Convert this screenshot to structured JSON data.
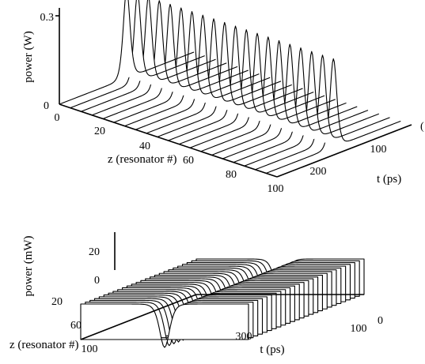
{
  "chart_data": [
    {
      "type": "area",
      "title": "",
      "zlabel": "power (W)",
      "xlabel": "z (resonator #)",
      "ylabel": "t (ps)",
      "z_ticks": [
        "0",
        "0.3"
      ],
      "x_ticks": [
        "0",
        "20",
        "40",
        "60",
        "80",
        "100"
      ],
      "t_ticks": [
        "100",
        "200"
      ],
      "t_tick_cut": "(",
      "x_range": [
        0,
        100
      ],
      "t_range": [
        0,
        300
      ],
      "z_range": [
        0,
        0.3
      ],
      "trace_count": 20,
      "series": [
        {
          "profile": "bright soliton pulse",
          "peak_power_W": 0.3,
          "t_center_ps": 150,
          "width_ps": 10,
          "z": [
            0,
            5,
            10,
            15,
            20,
            25,
            30,
            35,
            40,
            45,
            50,
            55,
            60,
            65,
            70,
            75,
            80,
            85,
            90,
            95
          ],
          "peak_W": [
            0.3,
            0.3,
            0.3,
            0.3,
            0.3,
            0.3,
            0.3,
            0.3,
            0.3,
            0.3,
            0.3,
            0.3,
            0.3,
            0.3,
            0.3,
            0.3,
            0.3,
            0.3,
            0.3,
            0.3
          ]
        }
      ]
    },
    {
      "type": "area",
      "title": "",
      "zlabel": "power (mW)",
      "xlabel": "z (resonator #)",
      "ylabel": "t (ps)",
      "z_ticks": [
        "0",
        "20"
      ],
      "x_ticks": [
        "20",
        "60",
        "100"
      ],
      "t_ticks": [
        "300",
        "100",
        "0"
      ],
      "x_range": [
        0,
        100
      ],
      "t_range": [
        0,
        300
      ],
      "z_range": [
        -30,
        30
      ],
      "trace_count": 26,
      "series": [
        {
          "profile": "dark soliton dip on cw background",
          "background_mW": 25,
          "dip_min_mW": -30,
          "t_center_ps": 150,
          "width_ps": 12
        }
      ]
    }
  ]
}
